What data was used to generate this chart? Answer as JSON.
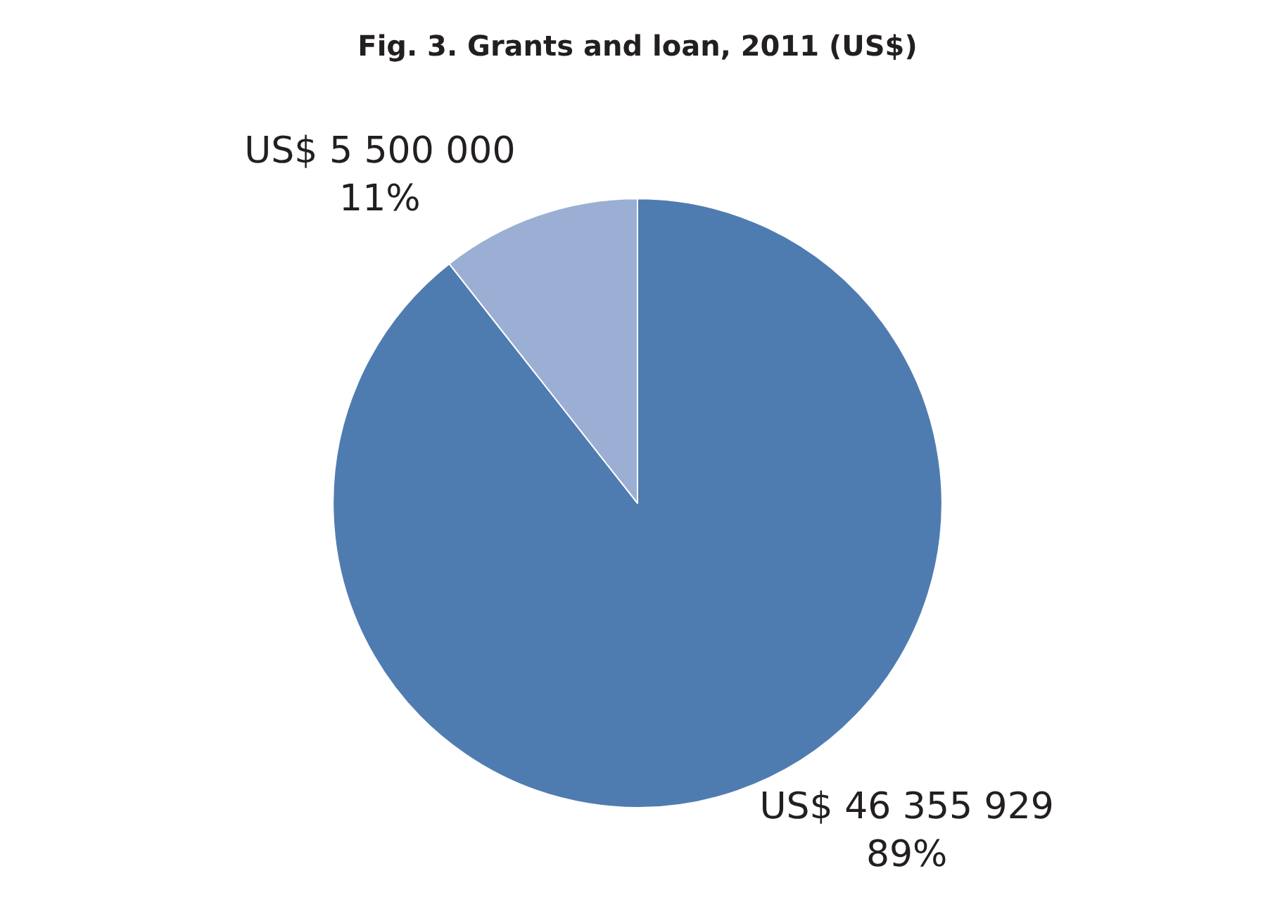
{
  "chart_data": {
    "type": "pie",
    "title": "Fig. 3. Grants and loan, 2011 (US$)",
    "categories": [
      null,
      null
    ],
    "values": [
      46355929,
      5500000
    ],
    "colors": [
      "#4f7cb0",
      "#9aafd3"
    ],
    "value_labels": [
      "US$ 46 355 929\n89%",
      "US$ 5 500 000\n11%"
    ],
    "legend": false
  }
}
